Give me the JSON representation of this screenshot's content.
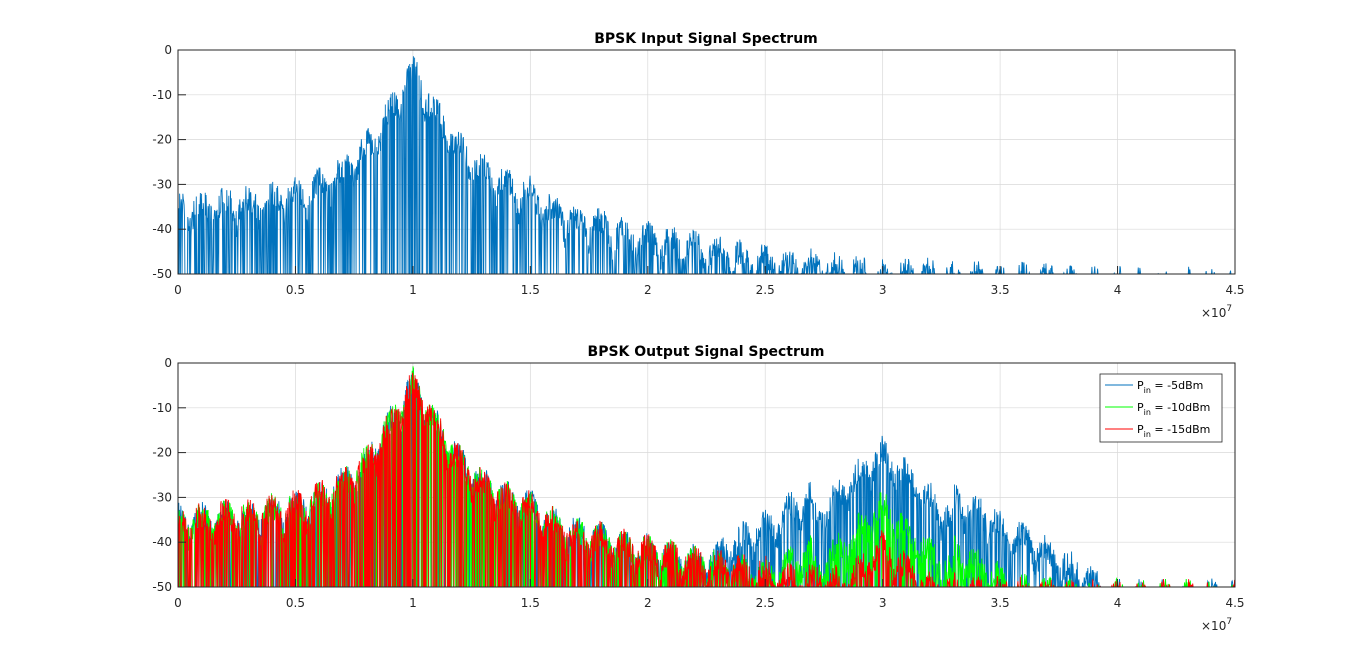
{
  "chart_data": [
    {
      "type": "line",
      "title": "BPSK Input Signal Spectrum",
      "xlabel": "",
      "ylabel": "",
      "xlim": [
        0,
        45000000
      ],
      "ylim": [
        -50,
        0
      ],
      "x_exponent_label": "×10",
      "x_exponent": "7",
      "grid": true,
      "legend": null,
      "xticks": [
        "0",
        "0.5",
        "1",
        "1.5",
        "2",
        "2.5",
        "3",
        "3.5",
        "4",
        "4.5"
      ],
      "yticks": [
        "0",
        "-10",
        "-20",
        "-30",
        "-40",
        "-50"
      ],
      "series": [
        {
          "color": "#0072bd",
          "center_mhz": 10,
          "peaks": [
            {
              "x": 0.0,
              "y": -31
            },
            {
              "x": 1.0,
              "y": -31
            },
            {
              "x": 2.0,
              "y": -30
            },
            {
              "x": 3.0,
              "y": -30
            },
            {
              "x": 4.0,
              "y": -29
            },
            {
              "x": 5.0,
              "y": -28
            },
            {
              "x": 6.0,
              "y": -26
            },
            {
              "x": 7.0,
              "y": -23
            },
            {
              "x": 8.0,
              "y": -18
            },
            {
              "x": 9.0,
              "y": -10
            },
            {
              "x": 10.0,
              "y": 0
            },
            {
              "x": 11.0,
              "y": -10
            },
            {
              "x": 12.0,
              "y": -18
            },
            {
              "x": 13.0,
              "y": -23
            },
            {
              "x": 14.0,
              "y": -26
            },
            {
              "x": 15.0,
              "y": -28
            },
            {
              "x": 16.0,
              "y": -32
            },
            {
              "x": 17.0,
              "y": -34
            },
            {
              "x": 18.0,
              "y": -35
            },
            {
              "x": 19.0,
              "y": -37
            },
            {
              "x": 20.0,
              "y": -38
            },
            {
              "x": 21.0,
              "y": -39
            },
            {
              "x": 22.0,
              "y": -40
            },
            {
              "x": 23.0,
              "y": -41
            },
            {
              "x": 24.0,
              "y": -42
            },
            {
              "x": 25.0,
              "y": -43
            },
            {
              "x": 26.0,
              "y": -44
            },
            {
              "x": 27.0,
              "y": -44
            },
            {
              "x": 28.0,
              "y": -45
            },
            {
              "x": 29.0,
              "y": -45
            },
            {
              "x": 30.0,
              "y": -46
            },
            {
              "x": 31.0,
              "y": -46
            },
            {
              "x": 32.0,
              "y": -46
            },
            {
              "x": 33.0,
              "y": -47
            },
            {
              "x": 34.0,
              "y": -47
            },
            {
              "x": 35.0,
              "y": -47
            },
            {
              "x": 36.0,
              "y": -47
            },
            {
              "x": 37.0,
              "y": -47
            },
            {
              "x": 38.0,
              "y": -48
            },
            {
              "x": 39.0,
              "y": -48
            },
            {
              "x": 40.0,
              "y": -48
            },
            {
              "x": 41.0,
              "y": -48
            },
            {
              "x": 42.0,
              "y": -48
            },
            {
              "x": 43.0,
              "y": -48
            },
            {
              "x": 44.0,
              "y": -48
            },
            {
              "x": 45.0,
              "y": -48
            }
          ]
        }
      ]
    },
    {
      "type": "line",
      "title": "BPSK Output Signal Spectrum",
      "xlabel": "",
      "ylabel": "",
      "xlim": [
        0,
        45000000
      ],
      "ylim": [
        -50,
        0
      ],
      "x_exponent_label": "×10",
      "x_exponent": "7",
      "grid": true,
      "legend": "top-right",
      "xticks": [
        "0",
        "0.5",
        "1",
        "1.5",
        "2",
        "2.5",
        "3",
        "3.5",
        "4",
        "4.5"
      ],
      "yticks": [
        "0",
        "-10",
        "-20",
        "-30",
        "-40",
        "-50"
      ],
      "series": [
        {
          "name_main": "P",
          "name_sub": "in",
          "name_rest": " = -5dBm",
          "color": "#0072bd",
          "third_harmonic_peak_db": -16
        },
        {
          "name_main": "P",
          "name_sub": "in",
          "name_rest": " = -10dBm",
          "color": "#00ff00",
          "third_harmonic_peak_db": -28
        },
        {
          "name_main": "P",
          "name_sub": "in",
          "name_rest": " = -15dBm",
          "color": "#ff0000",
          "third_harmonic_peak_db": -37
        }
      ]
    }
  ]
}
